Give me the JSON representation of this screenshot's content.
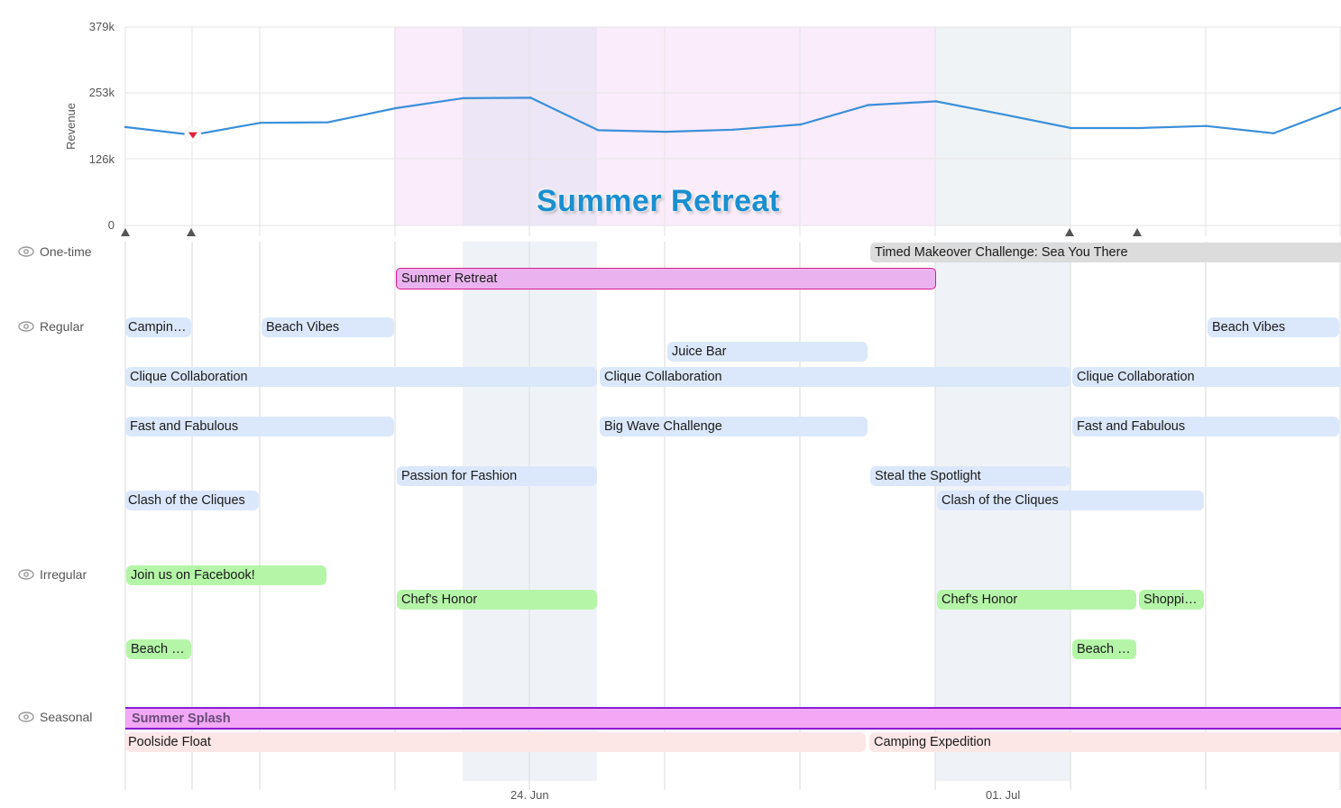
{
  "chart_data": {
    "type": "line",
    "ylabel": "Revenue",
    "y_ticks": [
      "379k",
      "253k",
      "126k",
      "0"
    ],
    "ylim": [
      0,
      379000
    ],
    "x_tick_labels": [
      "24. Jun",
      "01. Jul"
    ],
    "series": [
      {
        "values": [
          188000,
          173000,
          196000,
          197000,
          224000,
          243000,
          244000,
          182000,
          179000,
          183000,
          193000,
          230000,
          237000,
          212000,
          186000,
          186000,
          190000,
          176000,
          225000
        ]
      }
    ],
    "colors": {
      "line": "#3b8fd9",
      "drop_marker": "#e0233a"
    }
  },
  "hover_title": "Summer Retreat",
  "rows": {
    "one_time": {
      "label": "One-time"
    },
    "regular": {
      "label": "Regular"
    },
    "irregular": {
      "label": "Irregular"
    },
    "seasonal": {
      "label": "Seasonal"
    }
  },
  "events": {
    "timed_makeover": "Timed Makeover Challenge: Sea You There",
    "summer_retreat": "Summer Retreat",
    "camping": "Campin…",
    "beach_vibes_1": "Beach Vibes",
    "beach_vibes_2": "Beach Vibes",
    "juice_bar": "Juice Bar",
    "clique_collab_1": "Clique Collaboration",
    "clique_collab_2": "Clique Collaboration",
    "clique_collab_3": "Clique Collaboration",
    "fast_fabulous_1": "Fast and Fabulous",
    "big_wave": "Big Wave Challenge",
    "fast_fabulous_2": "Fast and Fabulous",
    "passion_fashion": "Passion for Fashion",
    "steal_spotlight": "Steal the Spotlight",
    "clash_cliques_1": "Clash of the Cliques",
    "clash_cliques_2": "Clash of the Cliques",
    "join_facebook": "Join us on Facebook!",
    "chefs_honor_1": "Chef's Honor",
    "chefs_honor_2": "Chef's Honor",
    "shopping": "Shoppi…",
    "beach_1": "Beach …",
    "beach_2": "Beach …",
    "summer_splash": "Summer Splash",
    "poolside_float": "Poolside Float",
    "camping_expedition": "Camping Expedition"
  },
  "colors": {
    "regular": "#dbe8fb",
    "irregular": "#b5f5a8",
    "one_time": "#dcdcdc",
    "retreat_fill": "#eab3ef",
    "seasonal_fill": "#f2a8f5",
    "poolside_fill": "#fde6e6"
  }
}
